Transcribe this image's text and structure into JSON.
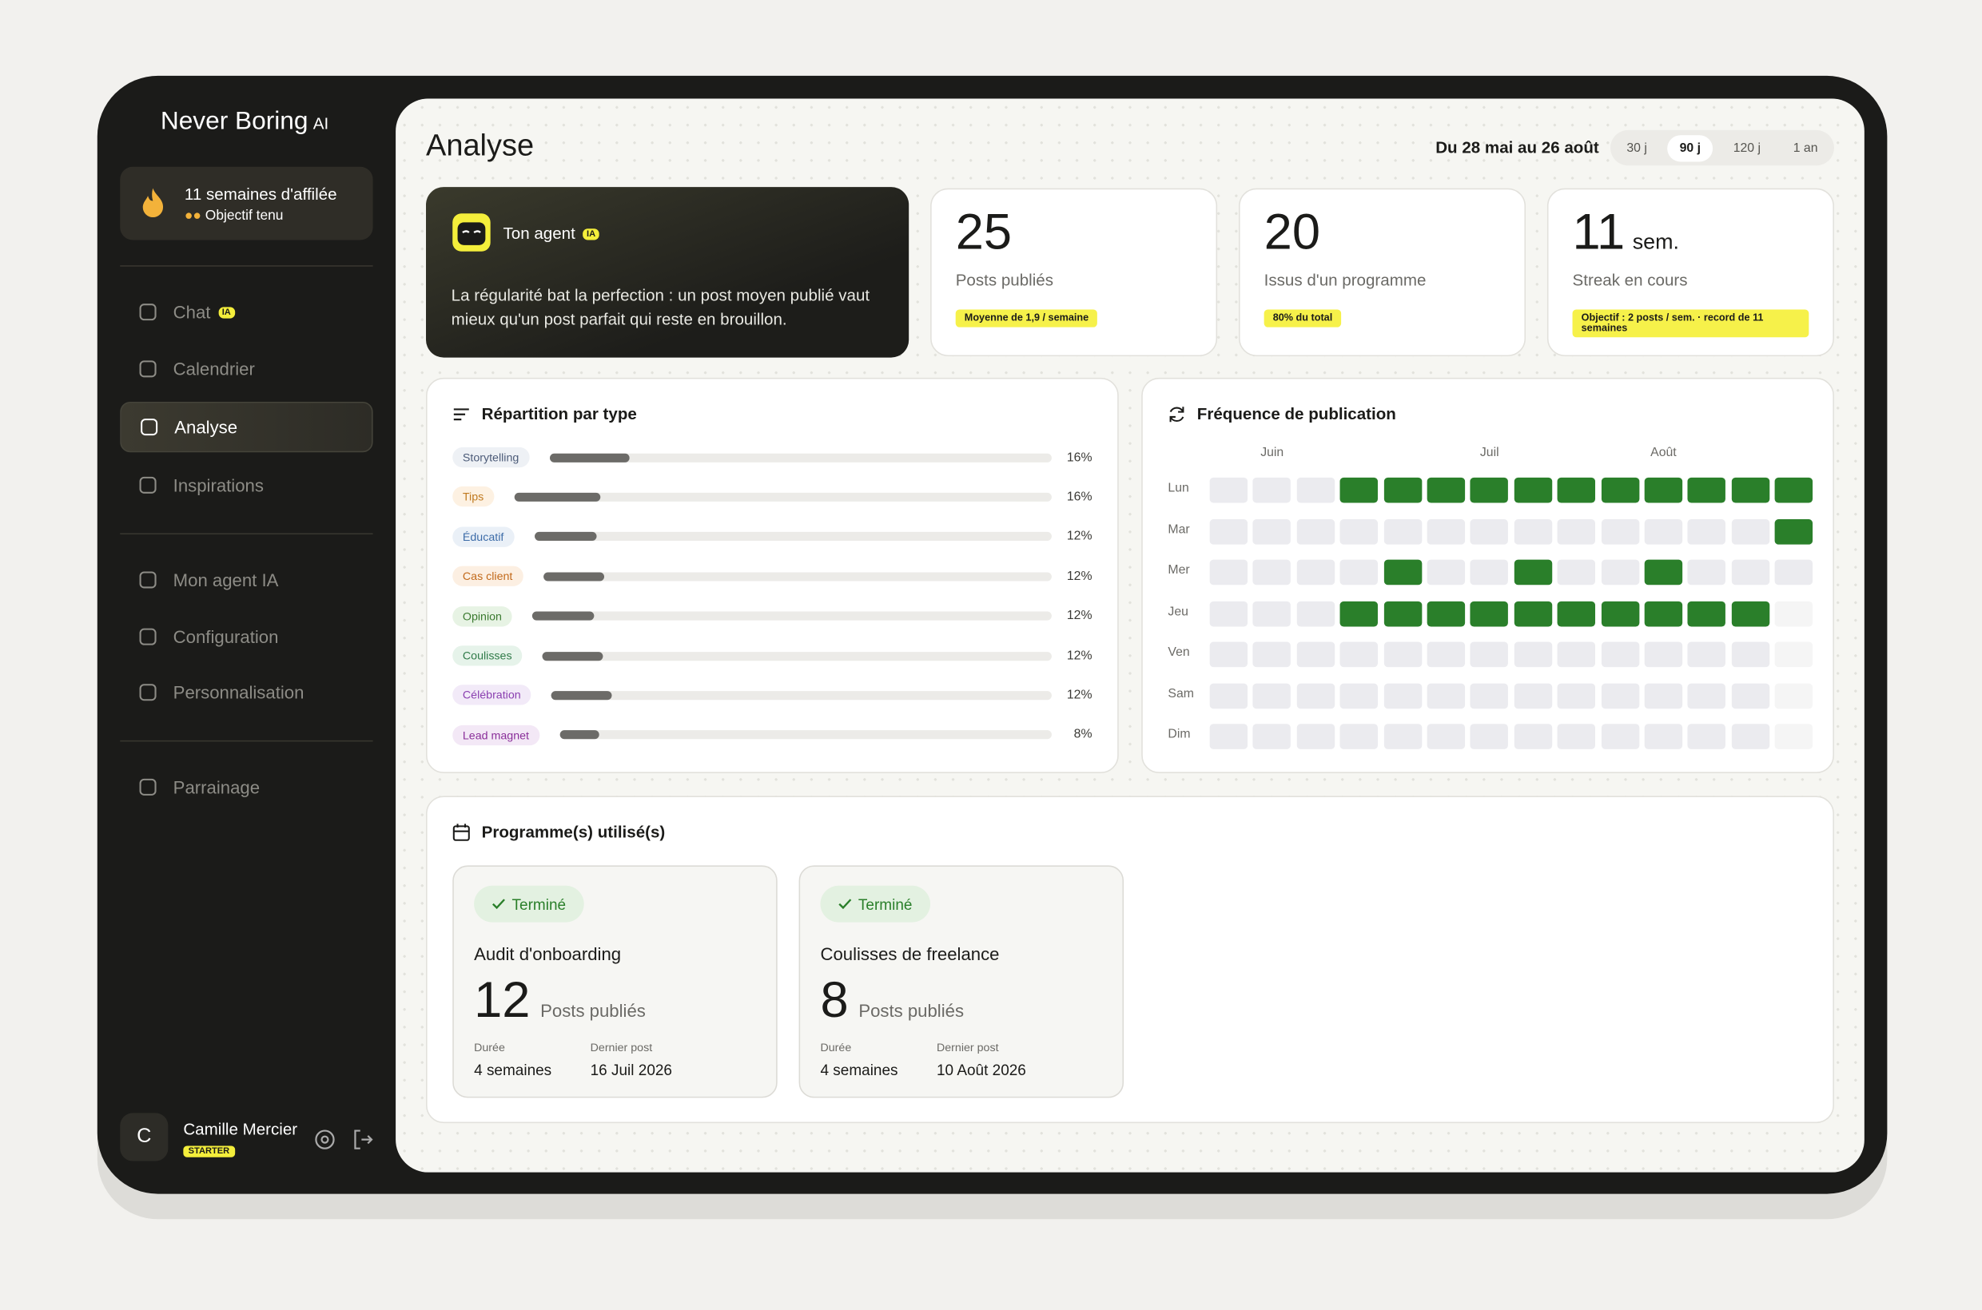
{
  "sidebar": {
    "logo": "Never Boring",
    "logo_badge": "AI",
    "streak": {
      "title": "11 semaines d'affilée",
      "subtitle": "Objectif tenu"
    },
    "nav": [
      {
        "label": "Chat",
        "badge": "IA"
      },
      {
        "label": "Calendrier"
      },
      {
        "label": "Analyse"
      },
      {
        "label": "Inspirations"
      },
      {
        "label": "Mon agent IA"
      },
      {
        "label": "Configuration"
      },
      {
        "label": "Personnalisation"
      },
      {
        "label": "Parrainage"
      }
    ],
    "active_nav": 2,
    "user": {
      "initial": "C",
      "name": "Camille Mercier",
      "plan": "STARTER"
    }
  },
  "header": {
    "title": "Analyse",
    "date_range": "Du 28 mai au 26 août",
    "periods": [
      "30 j",
      "90 j",
      "120 j",
      "1 an"
    ],
    "active_period": 1
  },
  "agent": {
    "title": "Ton agent",
    "badge": "IA",
    "message": "La régularité bat la perfection : un post moyen publié vaut mieux qu'un post parfait qui reste en brouillon."
  },
  "stats": [
    {
      "value": 25,
      "label": "Posts publiés",
      "note": "Moyenne de 1,9 / semaine"
    },
    {
      "value": 20,
      "label": "Issus d'un programme",
      "note": "80% du total"
    },
    {
      "value": 11,
      "unit": "sem.",
      "label": "Streak en cours",
      "note": "Objectif : 2 posts / sem. · record de 11 semaines"
    }
  ],
  "repartition": {
    "title": "Répartition par type",
    "items": [
      {
        "label": "Storytelling",
        "value": 16,
        "value_label": "16%",
        "bg": "#eef1f5",
        "color": "#4c5b78"
      },
      {
        "label": "Tips",
        "value": 16,
        "value_label": "16%",
        "bg": "#fdf1e2",
        "color": "#c07a20"
      },
      {
        "label": "Éducatif",
        "value": 12,
        "value_label": "12%",
        "bg": "#eaf0f7",
        "color": "#3d6ca8"
      },
      {
        "label": "Cas client",
        "value": 12,
        "value_label": "12%",
        "bg": "#fcefe2",
        "color": "#c2691a"
      },
      {
        "label": "Opinion",
        "value": 12,
        "value_label": "12%",
        "bg": "#e7f3e4",
        "color": "#3a7a2f"
      },
      {
        "label": "Coulisses",
        "value": 12,
        "value_label": "12%",
        "bg": "#e6f3ea",
        "color": "#2f7a48"
      },
      {
        "label": "Célébration",
        "value": 12,
        "value_label": "12%",
        "bg": "#f2eaf8",
        "color": "#8a3fb0"
      },
      {
        "label": "Lead magnet",
        "value": 8,
        "value_label": "8%",
        "bg": "#f3e8f6",
        "color": "#8a2f9a"
      }
    ]
  },
  "frequency": {
    "title": "Fréquence de publication",
    "months": [
      null,
      "Juin",
      null,
      null,
      null,
      null,
      "Juil",
      null,
      null,
      null,
      "Août",
      null,
      null,
      null
    ],
    "days": [
      "Lun",
      "Mar",
      "Mer",
      "Jeu",
      "Ven",
      "Sam",
      "Dim"
    ],
    "active_color": "#2a7f2a",
    "empty_color": "#ebebef",
    "future_color": "#f5f5f5",
    "rows": [
      [
        0,
        0,
        0,
        1,
        1,
        1,
        1,
        1,
        1,
        1,
        1,
        1,
        1,
        1
      ],
      [
        0,
        0,
        0,
        0,
        0,
        0,
        0,
        0,
        0,
        0,
        0,
        0,
        0,
        1
      ],
      [
        0,
        0,
        0,
        0,
        1,
        0,
        0,
        1,
        0,
        0,
        1,
        0,
        0,
        0
      ],
      [
        0,
        0,
        0,
        1,
        1,
        1,
        1,
        1,
        1,
        1,
        1,
        1,
        1,
        null
      ],
      [
        0,
        0,
        0,
        0,
        0,
        0,
        0,
        0,
        0,
        0,
        0,
        0,
        0,
        null
      ],
      [
        0,
        0,
        0,
        0,
        0,
        0,
        0,
        0,
        0,
        0,
        0,
        0,
        0,
        null
      ],
      [
        0,
        0,
        0,
        0,
        0,
        0,
        0,
        0,
        0,
        0,
        0,
        0,
        0,
        null
      ]
    ]
  },
  "programs": {
    "title": "Programme(s) utilisé(s)",
    "cards": [
      {
        "status": "Terminé",
        "name": "Audit d'onboarding",
        "posts": 12,
        "posts_label": "Posts publiés",
        "duration_label": "Durée",
        "duration": "4 semaines",
        "last_label": "Dernier post",
        "last": "16 Juil 2026"
      },
      {
        "status": "Terminé",
        "name": "Coulisses de freelance",
        "posts": 8,
        "posts_label": "Posts publiés",
        "duration_label": "Durée",
        "duration": "4 semaines",
        "last_label": "Dernier post",
        "last": "10 Août 2026"
      }
    ]
  }
}
